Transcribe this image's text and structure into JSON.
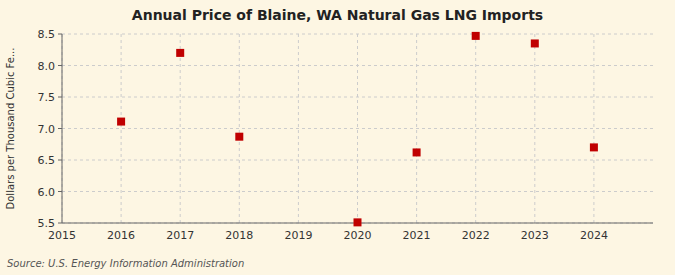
{
  "chart_data": {
    "type": "scatter",
    "title": "Annual Price of Blaine, WA Natural Gas LNG Imports",
    "ylabel": "Dollars per Thousand Cubic Fe...",
    "source": "Source: U.S. Energy Information Administration",
    "x": [
      2016,
      2017,
      2018,
      2020,
      2021,
      2022,
      2023,
      2024
    ],
    "values": [
      7.11,
      8.2,
      6.87,
      5.51,
      6.62,
      8.47,
      8.35,
      6.7
    ],
    "xlim": [
      2015,
      2025
    ],
    "ylim": [
      5.5,
      8.5
    ],
    "xticks": [
      2015,
      2016,
      2017,
      2018,
      2019,
      2020,
      2021,
      2022,
      2023,
      2024
    ],
    "yticks": [
      5.5,
      {
        "value": 6.0,
        "label": "6.0"
      },
      6.5,
      {
        "value": 7.0,
        "label": "7.0"
      },
      7.5,
      {
        "value": 8.0,
        "label": "8.0"
      },
      8.5
    ],
    "color": "#c00000",
    "marker": "square",
    "grid": true
  }
}
